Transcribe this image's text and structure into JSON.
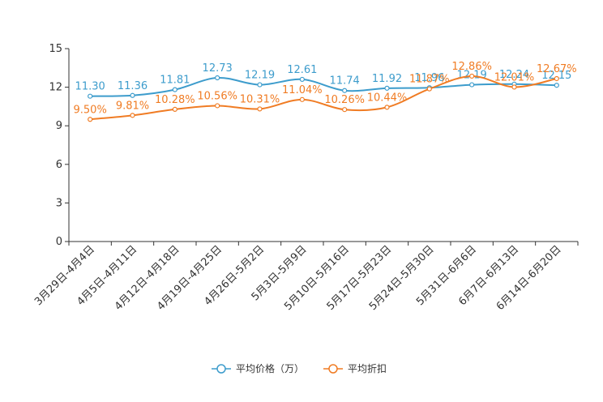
{
  "chart_data": {
    "type": "line",
    "title": "",
    "xlabel": "",
    "ylabel": "",
    "ylim": [
      0,
      15
    ],
    "yticks": [
      0,
      3,
      6,
      9,
      12,
      15
    ],
    "categories": [
      "3月29日-4月4日",
      "4月5日-4月11日",
      "4月12日-4月18日",
      "4月19日-4月25日",
      "4月26日-5月2日",
      "5月3日-5月9日",
      "5月10日-5月16日",
      "5月17日-5月23日",
      "5月24日-5月30日",
      "5月31日-6月6日",
      "6月7日-6月13日",
      "6月14日-6月20日"
    ],
    "series": [
      {
        "name": "平均价格（万）",
        "color": "#3d9ccc",
        "values": [
          11.3,
          11.36,
          11.81,
          12.73,
          12.19,
          12.61,
          11.74,
          11.92,
          11.96,
          12.19,
          12.24,
          12.15
        ],
        "labels": [
          "11.30",
          "11.36",
          "11.81",
          "12.73",
          "12.19",
          "12.61",
          "11.74",
          "11.92",
          "11.96",
          "12.19",
          "12.24",
          "12.15"
        ]
      },
      {
        "name": "平均折扣",
        "color": "#f07c24",
        "values": [
          9.5,
          9.81,
          10.28,
          10.56,
          10.31,
          11.04,
          10.26,
          10.44,
          11.87,
          12.86,
          12.01,
          12.67
        ],
        "labels": [
          "9.50%",
          "9.81%",
          "10.28%",
          "10.56%",
          "10.31%",
          "11.04%",
          "10.26%",
          "10.44%",
          "11.87%",
          "12.86%",
          "12.01%",
          "12.67%"
        ]
      }
    ],
    "legend_position": "bottom-center"
  }
}
